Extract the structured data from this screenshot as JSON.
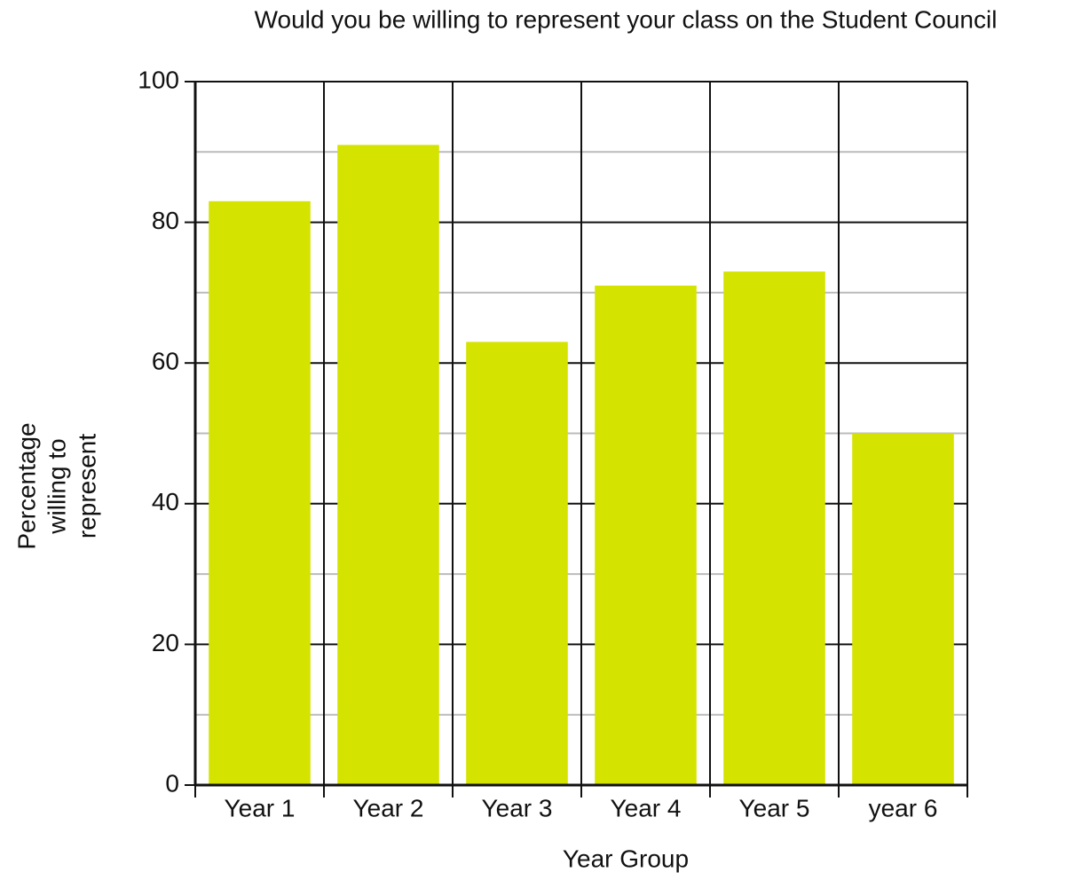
{
  "chart_data": {
    "type": "bar",
    "title": "Would you be willing to represent your class on the Student Council",
    "x_label": "Year Group",
    "y_label": [
      "Percentage",
      "willing to",
      "represent"
    ],
    "categories": [
      "Year 1",
      "Year 2",
      "Year 3",
      "Year 4",
      "Year 5",
      "year 6"
    ],
    "values": [
      83,
      91,
      63,
      71,
      73,
      50
    ],
    "color": "#d4e300",
    "ylim": [
      0,
      100
    ],
    "yticks": [
      0,
      20,
      40,
      60,
      80,
      100
    ],
    "minor_yticks": [
      10,
      30,
      50,
      70,
      90
    ],
    "grid": true
  }
}
